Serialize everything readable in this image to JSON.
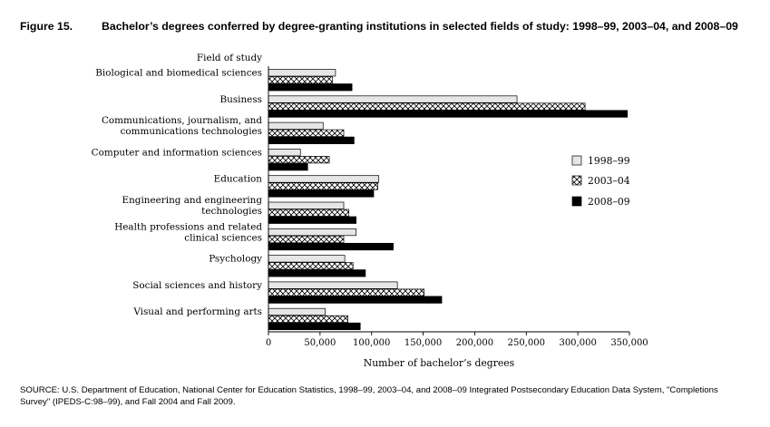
{
  "figure": {
    "label": "Figure 15.",
    "title": "Bachelor’s degrees conferred by degree-granting institutions in selected fields of study: 1998–99, 2003–04, and 2008–09"
  },
  "source_note": "SOURCE: U.S. Department of Education, National Center for Education Statistics, 1998–99, 2003–04, and 2008–09 Integrated Postsecondary Education Data System, \"Completions Survey\" (IPEDS-C:98–99), and Fall 2004 and Fall 2009.",
  "chart_data": {
    "type": "bar",
    "orientation": "horizontal",
    "y_axis_heading": "Field of study",
    "xlabel": "Number of bachelor’s degrees",
    "xlim": [
      0,
      350000
    ],
    "xticks": [
      0,
      50000,
      100000,
      150000,
      200000,
      250000,
      300000,
      350000
    ],
    "xtick_labels": [
      "0",
      "50,000",
      "100,000",
      "150,000",
      "200,000",
      "250,000",
      "300,000",
      "350,000"
    ],
    "grid": false,
    "legend_position": "right",
    "categories": [
      [
        "Biological and biomedical sciences"
      ],
      [
        "Business"
      ],
      [
        "Communications, journalism, and",
        "communications technologies"
      ],
      [
        "Computer and information sciences"
      ],
      [
        "Education"
      ],
      [
        "Engineering and engineering",
        "technologies"
      ],
      [
        "Health professions and related",
        "clinical sciences"
      ],
      [
        "Psychology"
      ],
      [
        "Social sciences and history"
      ],
      [
        "Visual and performing arts"
      ]
    ],
    "series": [
      {
        "name": "1998–99",
        "style": "light-gray",
        "color": "#e6e6e6",
        "values": [
          65000,
          241000,
          53000,
          31000,
          107000,
          73000,
          85000,
          74000,
          125000,
          55000
        ]
      },
      {
        "name": "2003–04",
        "style": "crosshatch",
        "color": "#ffffff",
        "values": [
          62000,
          307000,
          73000,
          59000,
          106000,
          78000,
          73000,
          82000,
          151000,
          77000
        ]
      },
      {
        "name": "2008–09",
        "style": "black",
        "color": "#000000",
        "values": [
          81000,
          348000,
          83000,
          38000,
          102000,
          85000,
          121000,
          94000,
          168000,
          89000
        ]
      }
    ]
  }
}
